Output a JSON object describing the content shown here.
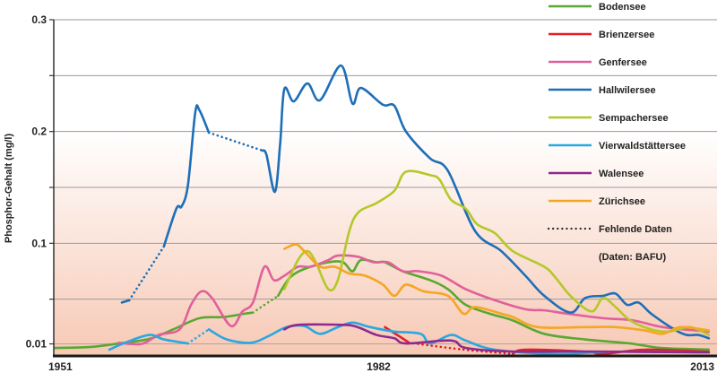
{
  "chart_data": {
    "type": "line",
    "title": "",
    "xlabel": "",
    "ylabel": "Phosphor-Gehalt (mg/l)",
    "xlim": [
      1951,
      2013
    ],
    "ylim": [
      0,
      0.3
    ],
    "x_ticks": [
      1951,
      1982,
      2013
    ],
    "x_tick_labels": [
      "1951",
      "1982",
      "2013"
    ],
    "y_ticks": [
      0.01,
      0.1,
      0.2,
      0.3
    ],
    "y_tick_labels": [
      "0.01",
      "0.1",
      "0.2",
      "0.3"
    ],
    "gridlines": [
      0.05,
      0.15,
      0.25
    ],
    "grid": true,
    "legend_position": "top-right",
    "missing_data_label": "Fehlende Daten",
    "source_note": "(Daten: BAFU)",
    "series": [
      {
        "name": "Bodensee",
        "color": "#5aa832",
        "segments": [
          {
            "dashed": false,
            "points": [
              [
                1951,
                0.0064
              ],
              [
                1954.4,
                0.0072
              ],
              [
                1957.2,
                0.0104
              ],
              [
                1960.1,
                0.0144
              ],
              [
                1962.4,
                0.023
              ],
              [
                1964.9,
                0.033
              ],
              [
                1967.2,
                0.034
              ],
              [
                1969.2,
                0.037
              ],
              [
                1970,
                0.038
              ]
            ]
          },
          {
            "dashed": true,
            "points": [
              [
                1970,
                0.038
              ],
              [
                1972.4,
                0.053
              ]
            ]
          },
          {
            "dashed": false,
            "points": [
              [
                1972.4,
                0.053
              ],
              [
                1973.5,
                0.069
              ],
              [
                1974.9,
                0.077
              ],
              [
                1977.2,
                0.083
              ],
              [
                1978.6,
                0.083
              ],
              [
                1979.5,
                0.075
              ],
              [
                1980.3,
                0.085
              ],
              [
                1981.8,
                0.083
              ],
              [
                1982.6,
                0.083
              ],
              [
                1984.3,
                0.075
              ],
              [
                1986.9,
                0.067
              ],
              [
                1988.6,
                0.059
              ],
              [
                1990.3,
                0.045
              ],
              [
                1992.6,
                0.037
              ],
              [
                1994.8,
                0.031
              ],
              [
                1997.8,
                0.019
              ],
              [
                2001.7,
                0.014
              ],
              [
                2006,
                0.0104
              ],
              [
                2008.9,
                0.0064
              ],
              [
                2013.5,
                0.005
              ]
            ]
          }
        ]
      },
      {
        "name": "Brienzersee",
        "color": "#e31e24",
        "segments": [
          {
            "dashed": false,
            "points": [
              [
                1982.6,
                0.025
              ],
              [
                1984.6,
                0.013
              ],
              [
                1984.9,
                0.011
              ]
            ]
          },
          {
            "dashed": true,
            "points": [
              [
                1984.9,
                0.011
              ],
              [
                1990,
                0.005
              ],
              [
                1994.8,
                0.001
              ]
            ]
          },
          {
            "dashed": false,
            "points": [
              [
                1994.8,
                0.001
              ],
              [
                1996,
                0.0048
              ],
              [
                2001.7,
                0.003
              ],
              [
                2003.4,
                0.001
              ],
              [
                2007.4,
                0.0048
              ],
              [
                2013.5,
                0.003
              ]
            ]
          }
        ]
      },
      {
        "name": "Genfersee",
        "color": "#e0609b",
        "segments": [
          {
            "dashed": false,
            "points": [
              [
                1957.2,
                0.011
              ],
              [
                1959.4,
                0.01
              ],
              [
                1961,
                0.018
              ],
              [
                1963,
                0.023
              ],
              [
                1964.1,
                0.045
              ],
              [
                1965.1,
                0.057
              ],
              [
                1966.1,
                0.051
              ],
              [
                1967.9,
                0.026
              ],
              [
                1969,
                0.039
              ],
              [
                1970,
                0.047
              ],
              [
                1971.1,
                0.079
              ],
              [
                1972,
                0.067
              ],
              [
                1973,
                0.071
              ],
              [
                1974.3,
                0.079
              ],
              [
                1975.5,
                0.079
              ],
              [
                1977.2,
                0.085
              ],
              [
                1978.1,
                0.089
              ],
              [
                1980,
                0.088
              ],
              [
                1981.5,
                0.083
              ],
              [
                1982.9,
                0.083
              ],
              [
                1984.3,
                0.075
              ],
              [
                1985.8,
                0.075
              ],
              [
                1988,
                0.071
              ],
              [
                1990.3,
                0.059
              ],
              [
                1993.1,
                0.049
              ],
              [
                1996,
                0.041
              ],
              [
                1997.8,
                0.04
              ],
              [
                2000,
                0.037
              ],
              [
                2003.4,
                0.033
              ],
              [
                2006.3,
                0.031
              ],
              [
                2009.1,
                0.025
              ],
              [
                2013.5,
                0.021
              ]
            ]
          }
        ]
      },
      {
        "name": "Hallwilersee",
        "color": "#1d6fb8",
        "segments": [
          {
            "dashed": false,
            "points": [
              [
                1957.5,
                0.047
              ],
              [
                1958.2,
                0.049
              ]
            ]
          },
          {
            "dashed": true,
            "points": [
              [
                1958.2,
                0.049
              ],
              [
                1961.5,
                0.097
              ]
            ]
          },
          {
            "dashed": false,
            "points": [
              [
                1961.5,
                0.097
              ],
              [
                1962.7,
                0.131
              ],
              [
                1963.2,
                0.133
              ],
              [
                1963.8,
                0.152
              ],
              [
                1964.5,
                0.217
              ],
              [
                1964.9,
                0.219
              ],
              [
                1965.8,
                0.199
              ]
            ]
          },
          {
            "dashed": true,
            "points": [
              [
                1965.8,
                0.199
              ],
              [
                1970.9,
                0.183
              ]
            ]
          },
          {
            "dashed": false,
            "points": [
              [
                1970.9,
                0.183
              ],
              [
                1971.3,
                0.179
              ],
              [
                1972.1,
                0.146
              ],
              [
                1972.6,
                0.189
              ],
              [
                1973,
                0.238
              ],
              [
                1973.9,
                0.227
              ],
              [
                1975.2,
                0.243
              ],
              [
                1976.4,
                0.228
              ],
              [
                1978.4,
                0.259
              ],
              [
                1979.5,
                0.225
              ],
              [
                1980.3,
                0.239
              ],
              [
                1982.4,
                0.224
              ],
              [
                1983.5,
                0.223
              ],
              [
                1984.6,
                0.2
              ],
              [
                1986.9,
                0.176
              ],
              [
                1988.6,
                0.165
              ],
              [
                1991.2,
                0.111
              ],
              [
                1993.7,
                0.093
              ],
              [
                1996,
                0.071
              ],
              [
                1997.8,
                0.053
              ],
              [
                2000.3,
                0.038
              ],
              [
                2001.7,
                0.051
              ],
              [
                2003.4,
                0.053
              ],
              [
                2004.6,
                0.055
              ],
              [
                2005.7,
                0.045
              ],
              [
                2006.8,
                0.047
              ],
              [
                2008,
                0.037
              ],
              [
                2010.2,
                0.023
              ],
              [
                2011.4,
                0.018
              ],
              [
                2012.5,
                0.018
              ],
              [
                2013.5,
                0.015
              ]
            ]
          }
        ]
      },
      {
        "name": "Sempachersee",
        "color": "#b5c829",
        "segments": [
          {
            "dashed": false,
            "points": [
              [
                1973,
                0.059
              ],
              [
                1974.3,
                0.085
              ],
              [
                1975.2,
                0.093
              ],
              [
                1976,
                0.083
              ],
              [
                1977.2,
                0.059
              ],
              [
                1978.1,
                0.067
              ],
              [
                1979.2,
                0.111
              ],
              [
                1980.1,
                0.128
              ],
              [
                1981.8,
                0.136
              ],
              [
                1983.5,
                0.147
              ],
              [
                1984.6,
                0.164
              ],
              [
                1986.9,
                0.161
              ],
              [
                1987.8,
                0.157
              ],
              [
                1988.9,
                0.139
              ],
              [
                1990.3,
                0.131
              ],
              [
                1991.4,
                0.117
              ],
              [
                1993.1,
                0.109
              ],
              [
                1994.8,
                0.093
              ],
              [
                1997.8,
                0.079
              ],
              [
                1998.9,
                0.069
              ],
              [
                2000.3,
                0.053
              ],
              [
                2002.3,
                0.039
              ],
              [
                2003.4,
                0.051
              ],
              [
                2004.6,
                0.043
              ],
              [
                2006,
                0.031
              ],
              [
                2008,
                0.023
              ],
              [
                2009.7,
                0.021
              ],
              [
                2011.7,
                0.025
              ],
              [
                2013.5,
                0.018
              ]
            ]
          }
        ]
      },
      {
        "name": "Vierwaldstättersee",
        "color": "#2aa8e0",
        "segments": [
          {
            "dashed": false,
            "points": [
              [
                1956.3,
                0.0048
              ],
              [
                1957.8,
                0.011
              ],
              [
                1960.1,
                0.018
              ],
              [
                1961.5,
                0.014
              ],
              [
                1963.8,
                0.0104
              ]
            ]
          },
          {
            "dashed": true,
            "points": [
              [
                1963.8,
                0.0104
              ],
              [
                1965.8,
                0.023
              ]
            ]
          },
          {
            "dashed": false,
            "points": [
              [
                1965.8,
                0.023
              ],
              [
                1967.5,
                0.014
              ],
              [
                1969.8,
                0.011
              ],
              [
                1971.5,
                0.017
              ],
              [
                1973.2,
                0.025
              ],
              [
                1974.9,
                0.026
              ],
              [
                1976.4,
                0.019
              ],
              [
                1978.1,
                0.025
              ],
              [
                1979.5,
                0.029
              ],
              [
                1981.2,
                0.025
              ],
              [
                1983.5,
                0.021
              ],
              [
                1986,
                0.019
              ],
              [
                1986.9,
                0.0104
              ],
              [
                1988.9,
                0.018
              ],
              [
                1990.3,
                0.013
              ],
              [
                1993.1,
                0.0048
              ],
              [
                1998.9,
                0.001
              ],
              [
                2004.6,
                0.003
              ],
              [
                2013.5,
                0.0024
              ]
            ]
          }
        ]
      },
      {
        "name": "Walensee",
        "color": "#8e2a8e",
        "segments": [
          {
            "dashed": false,
            "points": [
              [
                1973,
                0.023
              ],
              [
                1974.3,
                0.027
              ],
              [
                1978.6,
                0.027
              ],
              [
                1980,
                0.025
              ],
              [
                1981.8,
                0.018
              ],
              [
                1983.5,
                0.015
              ],
              [
                1984.6,
                0.0104
              ],
              [
                1988.9,
                0.013
              ],
              [
                1990.3,
                0.0064
              ],
              [
                1994.6,
                0.0032
              ],
              [
                2001.7,
                0.0032
              ],
              [
                2013.5,
                0.0024
              ]
            ]
          }
        ]
      },
      {
        "name": "Zürichsee",
        "color": "#f5a623",
        "segments": [
          {
            "dashed": false,
            "points": [
              [
                1973,
                0.095
              ],
              [
                1974.1,
                0.099
              ],
              [
                1974.9,
                0.093
              ],
              [
                1976.4,
                0.079
              ],
              [
                1977.8,
                0.079
              ],
              [
                1979.2,
                0.073
              ],
              [
                1980.7,
                0.071
              ],
              [
                1982.4,
                0.063
              ],
              [
                1983.5,
                0.053
              ],
              [
                1984.6,
                0.063
              ],
              [
                1986.3,
                0.057
              ],
              [
                1988.6,
                0.053
              ],
              [
                1990.1,
                0.037
              ],
              [
                1991.2,
                0.043
              ],
              [
                1993.7,
                0.037
              ],
              [
                1994.8,
                0.034
              ],
              [
                1997.2,
                0.025
              ],
              [
                2001.7,
                0.025
              ],
              [
                2004.6,
                0.025
              ],
              [
                2007.4,
                0.022
              ],
              [
                2009.1,
                0.019
              ],
              [
                2010.8,
                0.025
              ],
              [
                2013.5,
                0.022
              ]
            ]
          }
        ]
      }
    ]
  }
}
